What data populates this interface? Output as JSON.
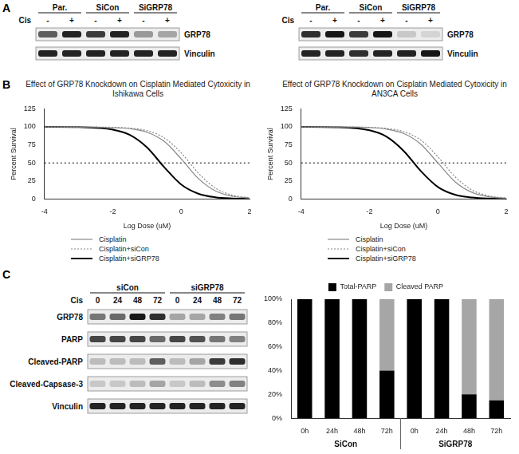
{
  "panel_labels": [
    "A",
    "B",
    "C"
  ],
  "blots": [
    {
      "groups": [
        "Par.",
        "SiCon",
        "SiGRP78"
      ],
      "treatment_label": "Cis",
      "lanes": [
        "-",
        "+",
        "-",
        "+",
        "-",
        "+"
      ],
      "rows": [
        {
          "name": "GRP78",
          "intensity": [
            0.6,
            0.85,
            0.75,
            0.85,
            0.35,
            0.3
          ]
        },
        {
          "name": "Vinculin",
          "intensity": [
            0.85,
            0.85,
            0.85,
            0.85,
            0.85,
            0.85
          ]
        }
      ]
    },
    {
      "groups": [
        "Par.",
        "SiCon",
        "SiGRP78"
      ],
      "treatment_label": "Cis",
      "lanes": [
        "-",
        "+",
        "-",
        "+",
        "-",
        "+"
      ],
      "rows": [
        {
          "name": "GRP78",
          "intensity": [
            0.8,
            0.9,
            0.75,
            0.9,
            0.15,
            0.1
          ]
        },
        {
          "name": "Vinculin",
          "intensity": [
            0.85,
            0.85,
            0.8,
            0.85,
            0.85,
            0.9
          ]
        }
      ]
    },
    {
      "groups": [
        "siCon",
        "siGRP78"
      ],
      "treatment_label": "Cis",
      "lanes": [
        "0",
        "24",
        "48",
        "72",
        "0",
        "24",
        "48",
        "72"
      ],
      "rows": [
        {
          "name": "GRP78",
          "intensity": [
            0.5,
            0.55,
            0.9,
            0.8,
            0.3,
            0.3,
            0.45,
            0.5
          ]
        },
        {
          "name": "PARP",
          "intensity": [
            0.7,
            0.7,
            0.7,
            0.55,
            0.7,
            0.65,
            0.5,
            0.45
          ]
        },
        {
          "name": "Cleaved-PARP",
          "intensity": [
            0.2,
            0.2,
            0.2,
            0.6,
            0.2,
            0.3,
            0.75,
            0.8
          ]
        },
        {
          "name": "Cleaved-Capsase-3",
          "intensity": [
            0.15,
            0.15,
            0.2,
            0.3,
            0.15,
            0.2,
            0.4,
            0.45
          ]
        },
        {
          "name": "Vinculin",
          "intensity": [
            0.85,
            0.85,
            0.85,
            0.85,
            0.85,
            0.85,
            0.85,
            0.85
          ]
        }
      ]
    }
  ],
  "chart_data": [
    {
      "type": "line",
      "title": "Effect of GRP78 Knockdown on Cisplatin Mediated Cytoxicity in Ishikawa Cells",
      "xlabel": "Log Dose (uM)",
      "ylabel": "Percent Survival",
      "x": [
        -4,
        -3,
        -2,
        -1.5,
        -1,
        -0.5,
        0,
        0.5,
        1,
        1.5,
        2
      ],
      "series": [
        {
          "name": "Cisplatin",
          "color": "#888888",
          "line_style": "solid",
          "values": [
            100,
            99.9,
            98.8,
            97.5,
            92.6,
            80,
            55.7,
            28.5,
            11.2,
            3.8,
            1.2
          ]
        },
        {
          "name": "Cisplatin+siCon",
          "color": "#888888",
          "line_style": "dotted",
          "values": [
            100,
            99.9,
            99.4,
            98.3,
            94.7,
            84.9,
            64,
            36,
            15.1,
            5.3,
            1.7
          ]
        },
        {
          "name": "Cisplatin+siGRP78",
          "color": "#000000",
          "line_style": "solid",
          "values": [
            100,
            99.6,
            96.2,
            88.8,
            71.5,
            44.3,
            20.1,
            7.4,
            2.4,
            0.8,
            0.3
          ]
        }
      ],
      "reference_line": 50,
      "xlim": [
        -4,
        2
      ],
      "xticks": [
        -4,
        -2,
        0,
        2
      ],
      "ylim": [
        0,
        125
      ],
      "yticks": [
        0,
        25,
        50,
        75,
        100,
        125
      ],
      "grid": false,
      "legend": "bottom"
    },
    {
      "type": "line",
      "title": "Effect of GRP78 Knockdown on Cisplatin Mediated Cytoxicity in AN3CA Cells",
      "xlabel": "Log Dose (uM)",
      "ylabel": "Percent Survival",
      "x": [
        -4,
        -3,
        -2,
        -1.5,
        -1,
        -0.5,
        0,
        0.5,
        1,
        1.5,
        2
      ],
      "series": [
        {
          "name": "Cisplatin",
          "color": "#888888",
          "line_style": "solid",
          "values": [
            100,
            99.9,
            99,
            96.9,
            90.9,
            76,
            50,
            24,
            9.1,
            3.1,
            1
          ]
        },
        {
          "name": "Cisplatin+siCon",
          "color": "#888888",
          "line_style": "dotted",
          "values": [
            100,
            99.9,
            99.3,
            97.8,
            93.4,
            81.7,
            58.5,
            30.9,
            12.4,
            4.3,
            1.4
          ]
        },
        {
          "name": "Cisplatin+siGRP78",
          "color": "#000000",
          "line_style": "solid",
          "values": [
            100,
            99.5,
            95.2,
            86.3,
            66.6,
            38.7,
            16.6,
            5.9,
            2,
            0.6,
            0.2
          ]
        }
      ],
      "reference_line": 50,
      "xlim": [
        -4,
        2
      ],
      "xticks": [
        -4,
        -2,
        0,
        2
      ],
      "ylim": [
        0,
        125
      ],
      "yticks": [
        0,
        25,
        50,
        75,
        100,
        125
      ],
      "grid": false,
      "legend": "bottom"
    },
    {
      "type": "bar",
      "stacked": true,
      "groups": [
        {
          "name": "SiCon",
          "categories": [
            "0h",
            "24h",
            "48h",
            "72h"
          ]
        },
        {
          "name": "SiGRP78",
          "categories": [
            "0h",
            "24h",
            "48h",
            "72h"
          ]
        }
      ],
      "series": [
        {
          "name": "Total-PARP",
          "color": "#000000",
          "values": [
            100,
            100,
            100,
            40,
            100,
            100,
            20,
            15
          ]
        },
        {
          "name": "Cleaved PARP",
          "color": "#a6a6a6",
          "values": [
            0,
            0,
            0,
            60,
            0,
            0,
            80,
            85
          ]
        }
      ],
      "ylim": [
        0,
        100
      ],
      "yticks": [
        {
          "value": 0,
          "label": "0%"
        },
        {
          "value": 20,
          "label": "20%"
        },
        {
          "value": 40,
          "label": "40%"
        },
        {
          "value": 60,
          "label": "60%"
        },
        {
          "value": 80,
          "label": "80%"
        },
        {
          "value": 100,
          "label": "100%"
        }
      ],
      "grid": false,
      "legend": "top"
    }
  ]
}
